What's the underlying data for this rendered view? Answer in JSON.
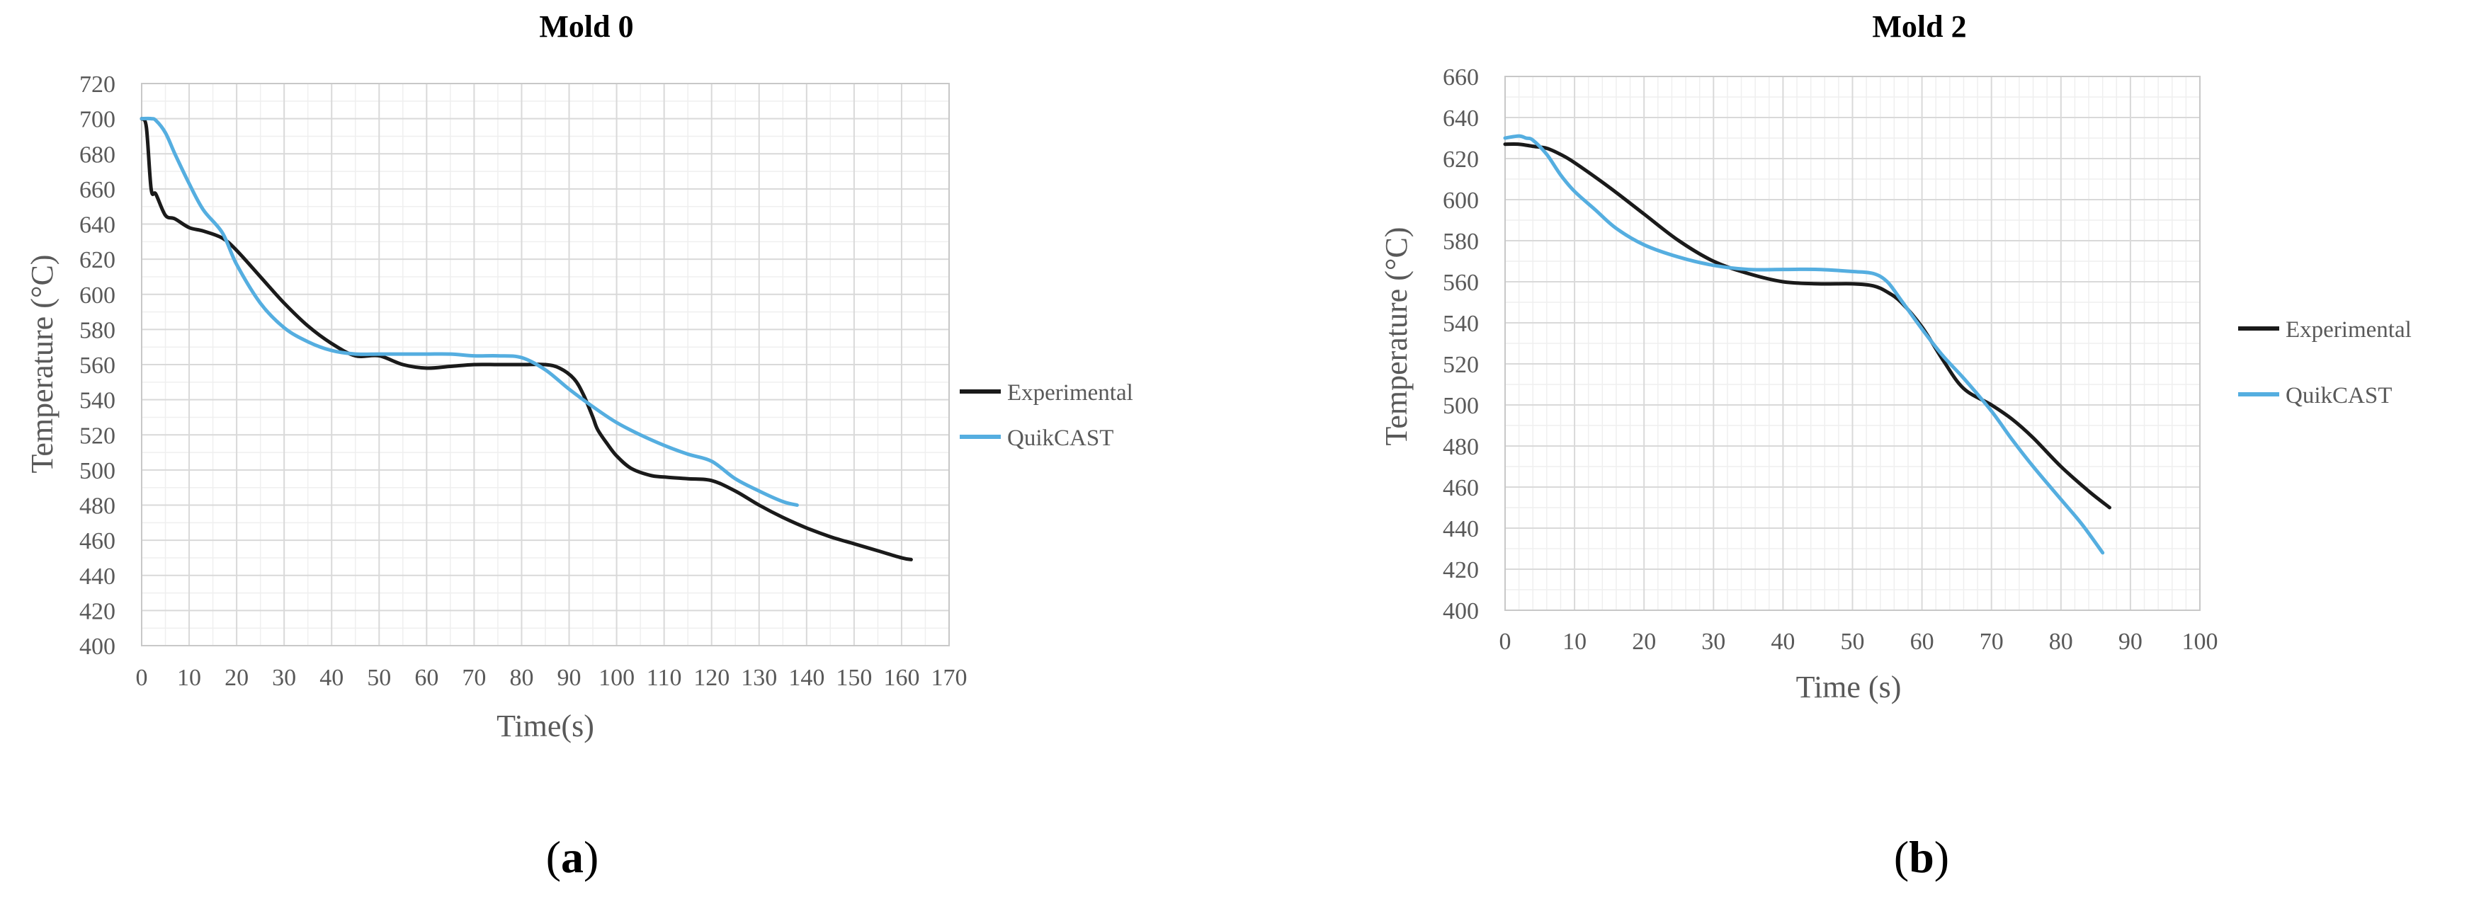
{
  "colors": {
    "experimental": "#1a1a1a",
    "quikcast": "#55aee0",
    "major_grid": "#d9d9d9",
    "minor_grid": "#efefef",
    "plot_border": "#c8c8c8"
  },
  "captions": {
    "a_open": "(",
    "a_letter": "a",
    "a_close": ")",
    "b_open": "(",
    "b_letter": "b",
    "b_close": ")"
  },
  "chart_data": [
    {
      "type": "line",
      "title": "Mold 0",
      "xlabel": "Time(s)",
      "ylabel": "Temperature (°C)",
      "xlim": [
        0,
        170
      ],
      "ylim": [
        400,
        720
      ],
      "xticks": [
        "0",
        "10",
        "20",
        "30",
        "40",
        "50",
        "60",
        "70",
        "80",
        "90",
        "100",
        "110",
        "120",
        "130",
        "140",
        "150",
        "160",
        "170"
      ],
      "yticks": [
        "400",
        "420",
        "440",
        "460",
        "480",
        "500",
        "520",
        "540",
        "560",
        "580",
        "600",
        "620",
        "640",
        "660",
        "680",
        "700",
        "720"
      ],
      "grid": true,
      "legend_position": "right",
      "series": [
        {
          "name": "Experimental",
          "x": [
            0,
            1,
            2,
            3,
            5,
            7,
            10,
            13,
            17,
            20,
            25,
            30,
            35,
            40,
            45,
            50,
            55,
            60,
            65,
            70,
            75,
            80,
            85,
            88,
            91,
            93,
            95,
            96,
            98,
            100,
            103,
            107,
            110,
            115,
            120,
            125,
            130,
            135,
            140,
            145,
            150,
            155,
            160,
            162
          ],
          "y": [
            700,
            695,
            660,
            657,
            645,
            643,
            638,
            636,
            632,
            625,
            610,
            595,
            582,
            572,
            565,
            565,
            560,
            558,
            559,
            560,
            560,
            560,
            560,
            558,
            552,
            543,
            530,
            523,
            515,
            508,
            501,
            497,
            496,
            495,
            494,
            488,
            480,
            473,
            467,
            462,
            458,
            454,
            450,
            449
          ]
        },
        {
          "name": "QuikCAST",
          "x": [
            0,
            2,
            3,
            5,
            7,
            10,
            13,
            17,
            20,
            25,
            30,
            35,
            40,
            45,
            50,
            55,
            60,
            65,
            70,
            75,
            80,
            85,
            90,
            95,
            100,
            105,
            110,
            115,
            120,
            125,
            130,
            135,
            138
          ],
          "y": [
            700,
            700,
            699,
            692,
            680,
            663,
            648,
            635,
            617,
            595,
            581,
            573,
            568,
            566,
            566,
            566,
            566,
            566,
            565,
            565,
            564,
            557,
            546,
            536,
            527,
            520,
            514,
            509,
            505,
            495,
            488,
            482,
            480
          ]
        }
      ]
    },
    {
      "type": "line",
      "title": "Mold 2",
      "xlabel": "Time (s)",
      "ylabel": "Temperature (°C)",
      "xlim": [
        0,
        100
      ],
      "ylim": [
        400,
        660
      ],
      "xticks": [
        "0",
        "10",
        "20",
        "30",
        "40",
        "50",
        "60",
        "70",
        "80",
        "90",
        "100"
      ],
      "yticks": [
        "400",
        "420",
        "440",
        "460",
        "480",
        "500",
        "520",
        "540",
        "560",
        "580",
        "600",
        "620",
        "640",
        "660"
      ],
      "grid": true,
      "legend_position": "right",
      "series": [
        {
          "name": "Experimental",
          "x": [
            0,
            2,
            4,
            6,
            8,
            10,
            15,
            20,
            25,
            30,
            35,
            40,
            45,
            50,
            53,
            55,
            57,
            60,
            63,
            66,
            70,
            73,
            76,
            80,
            84,
            87
          ],
          "y": [
            627,
            627,
            626,
            625,
            622,
            618,
            606,
            593,
            580,
            570,
            564,
            560,
            559,
            559,
            558,
            555,
            550,
            538,
            522,
            508,
            500,
            493,
            484,
            470,
            458,
            450
          ]
        },
        {
          "name": "QuikCAST",
          "x": [
            0,
            2,
            3,
            4,
            6,
            8,
            10,
            13,
            16,
            20,
            25,
            30,
            35,
            40,
            45,
            50,
            53,
            55,
            57,
            60,
            63,
            66,
            70,
            73,
            76,
            80,
            83,
            86
          ],
          "y": [
            630,
            631,
            630,
            629,
            622,
            612,
            604,
            595,
            586,
            578,
            572,
            568,
            566,
            566,
            566,
            565,
            564,
            560,
            551,
            537,
            524,
            513,
            497,
            483,
            470,
            454,
            442,
            428
          ]
        }
      ]
    }
  ]
}
